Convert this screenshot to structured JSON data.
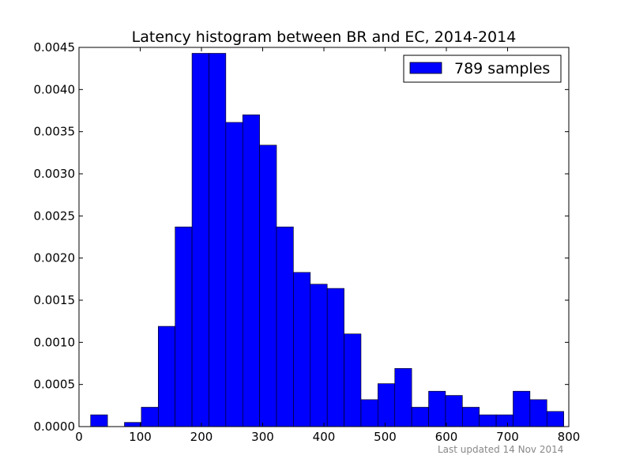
{
  "chart_data": {
    "type": "bar",
    "title": "Latency histogram between BR and EC, 2014-2014",
    "xlabel": "",
    "ylabel": "",
    "xlim": [
      0,
      800
    ],
    "ylim": [
      0,
      0.0045
    ],
    "x_ticks": [
      "0",
      "100",
      "200",
      "300",
      "400",
      "500",
      "600",
      "700",
      "800"
    ],
    "y_ticks": [
      "0.0000",
      "0.0005",
      "0.0010",
      "0.0015",
      "0.0020",
      "0.0025",
      "0.0030",
      "0.0035",
      "0.0040",
      "0.0045"
    ],
    "grid": false,
    "legend_position": "top-right",
    "bar_color": "#0000ff",
    "series": [
      {
        "name": "789 samples",
        "bin_edges": [
          19,
          46.6,
          74.2,
          101.8,
          129.4,
          157,
          184.6,
          212.2,
          239.8,
          267.4,
          295,
          322.6,
          350.2,
          377.8,
          405.4,
          433,
          460.6,
          488.2,
          515.8,
          543.4,
          571,
          598.6,
          626.2,
          653.8,
          681.4,
          709,
          736.6,
          764.2,
          791.8
        ],
        "values": [
          0.00014,
          0.0,
          5e-05,
          0.00023,
          0.00119,
          0.00237,
          0.00443,
          0.00443,
          0.00361,
          0.0037,
          0.00334,
          0.00237,
          0.00183,
          0.00169,
          0.00164,
          0.0011,
          0.00032,
          0.00051,
          0.00069,
          0.00023,
          0.00042,
          0.00037,
          0.00023,
          0.00014,
          0.00014,
          0.00042,
          0.00032,
          0.00018
        ]
      }
    ]
  },
  "footer": {
    "last_updated": "Last updated 14 Nov 2014"
  }
}
